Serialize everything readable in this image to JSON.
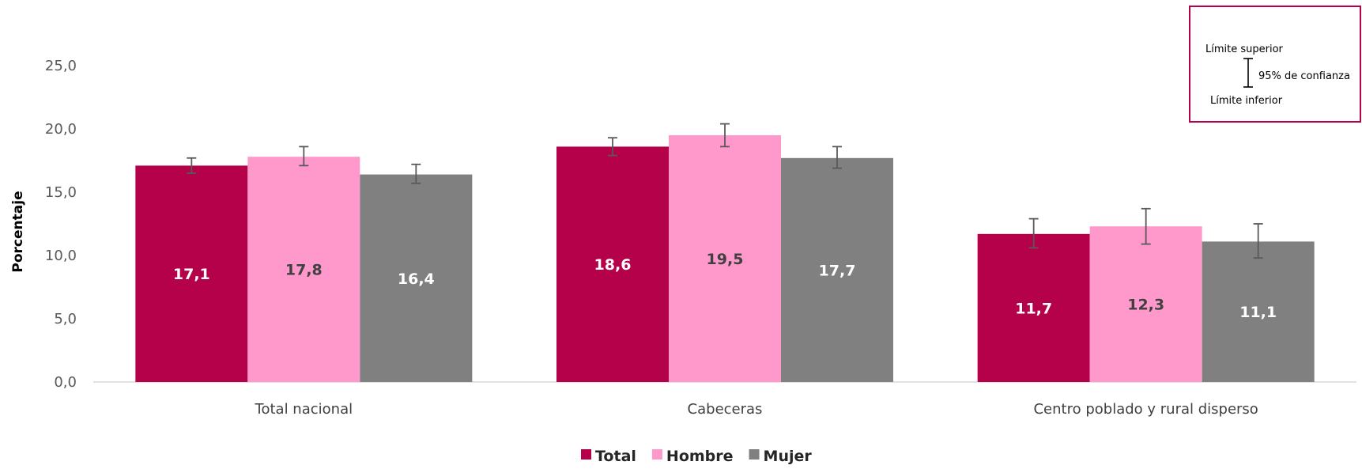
{
  "chart_data": {
    "type": "bar",
    "categories": [
      "Total nacional",
      "Cabeceras",
      "Centro poblado y rural disperso"
    ],
    "series": [
      {
        "name": "Total",
        "values": [
          17.1,
          18.6,
          11.7
        ],
        "ci_low": [
          16.5,
          17.9,
          10.6
        ],
        "ci_high": [
          17.7,
          19.3,
          12.9
        ],
        "color": "#b5004a",
        "label_color": "#ffffff"
      },
      {
        "name": "Hombre",
        "values": [
          17.8,
          19.5,
          12.3
        ],
        "ci_low": [
          17.1,
          18.6,
          10.9
        ],
        "ci_high": [
          18.6,
          20.4,
          13.7
        ],
        "color": "#ff99cc",
        "label_color": "#404040"
      },
      {
        "name": "Mujer",
        "values": [
          16.4,
          17.7,
          11.1
        ],
        "ci_low": [
          15.7,
          16.9,
          9.8
        ],
        "ci_high": [
          17.2,
          18.6,
          12.5
        ],
        "color": "#808080",
        "label_color": "#ffffff"
      }
    ],
    "value_labels": [
      [
        "17,1",
        "18,6",
        "11,7"
      ],
      [
        "17,8",
        "19,5",
        "12,3"
      ],
      [
        "16,4",
        "17,7",
        "11,1"
      ]
    ],
    "yticks": [
      0,
      5,
      10,
      15,
      20,
      25
    ],
    "ytick_labels": [
      "0,0",
      "5,0",
      "10,0",
      "15,0",
      "20,0",
      "25,0"
    ],
    "ylim": [
      0,
      25
    ],
    "ylabel": "Porcentaje",
    "xlabel": "",
    "title": "",
    "grid": false,
    "legend_position": "bottom",
    "error_bars": true
  },
  "confidence_note": {
    "upper": "Límite superior",
    "middle": "95% de confianza",
    "lower": "Límite inferior",
    "border_color": "#b5004a"
  }
}
